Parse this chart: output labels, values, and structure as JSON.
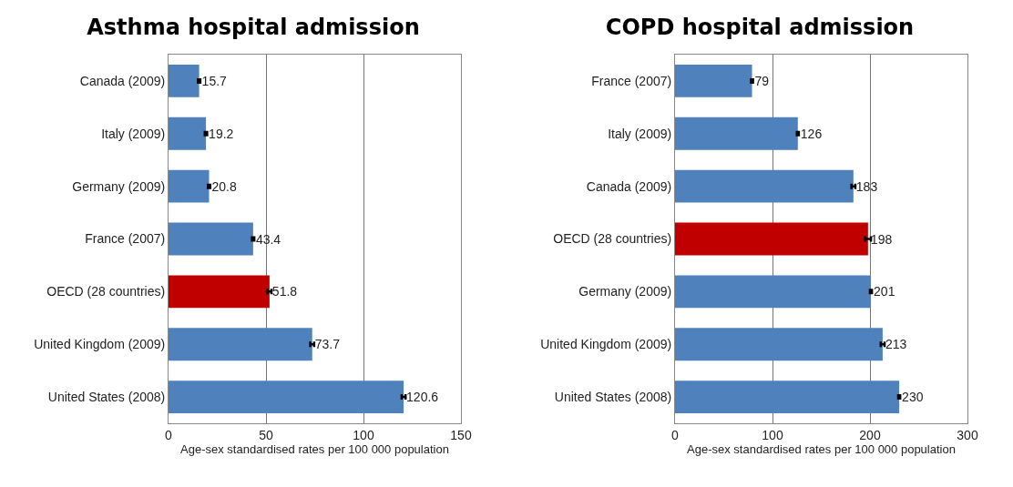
{
  "chart_data": [
    {
      "type": "bar",
      "orientation": "horizontal",
      "title": "Asthma hospital admission",
      "xlabel": "Age-sex standardised rates per 100 000 population",
      "categories": [
        "Canada (2009)",
        "Italy (2009)",
        "Germany (2009)",
        "France (2007)",
        "OECD (28 countries)",
        "United Kingdom (2009)",
        "United States (2008)"
      ],
      "values": [
        15.7,
        19.2,
        20.8,
        43.4,
        51.8,
        73.7,
        120.6
      ],
      "errors": [
        0.6,
        0.6,
        0.6,
        0.6,
        1,
        1,
        1
      ],
      "colors": [
        "#4f81bd",
        "#4f81bd",
        "#4f81bd",
        "#4f81bd",
        "#c00000",
        "#4f81bd",
        "#4f81bd"
      ],
      "xlim": [
        0,
        150
      ],
      "xticks": [
        0,
        50,
        100,
        150
      ],
      "grid": "x",
      "data_labels": true
    },
    {
      "type": "bar",
      "orientation": "horizontal",
      "title": "COPD hospital admission",
      "xlabel": "Age-sex standardised rates per 100 000 population",
      "categories": [
        "France (2007)",
        "Italy (2009)",
        "Canada (2009)",
        "OECD (28 countries)",
        "Germany (2009)",
        "United Kingdom (2009)",
        "United States (2008)"
      ],
      "values": [
        79,
        126,
        183,
        198,
        201,
        213,
        230
      ],
      "errors": [
        1,
        1,
        2,
        3,
        1,
        2,
        1
      ],
      "colors": [
        "#4f81bd",
        "#4f81bd",
        "#4f81bd",
        "#c00000",
        "#4f81bd",
        "#4f81bd",
        "#4f81bd"
      ],
      "xlim": [
        0,
        300
      ],
      "xticks": [
        0,
        100,
        200,
        300
      ],
      "grid": "x",
      "data_labels": true
    }
  ]
}
